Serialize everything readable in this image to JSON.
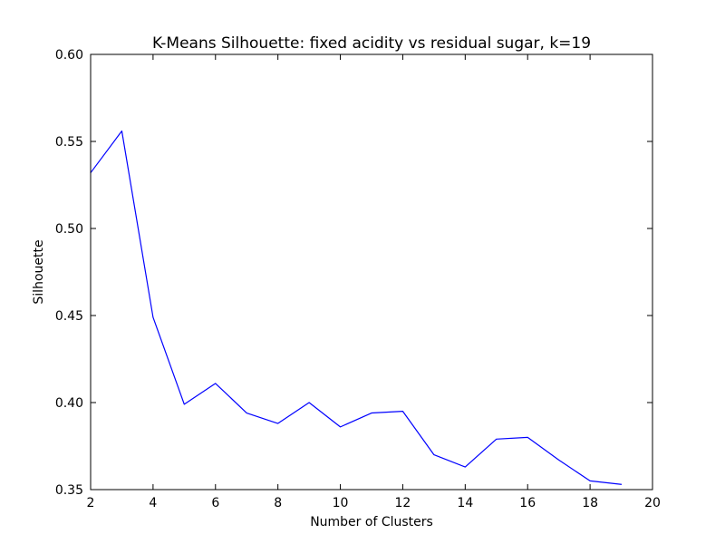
{
  "chart_data": {
    "type": "line",
    "title": "K-Means Silhouette: fixed acidity vs residual sugar, k=19",
    "xlabel": "Number of Clusters",
    "ylabel": "Silhouette",
    "xlim": [
      2,
      20
    ],
    "ylim": [
      0.35,
      0.6
    ],
    "xticks": [
      2,
      4,
      6,
      8,
      10,
      12,
      14,
      16,
      18,
      20
    ],
    "xtick_labels": [
      "2",
      "4",
      "6",
      "8",
      "10",
      "12",
      "14",
      "16",
      "18",
      "20"
    ],
    "yticks": [
      0.35,
      0.4,
      0.45,
      0.5,
      0.55,
      0.6
    ],
    "ytick_labels": [
      "0.35",
      "0.40",
      "0.45",
      "0.50",
      "0.55",
      "0.60"
    ],
    "grid": false,
    "series": [
      {
        "color": "#0000ff",
        "x": [
          2,
          3,
          4,
          5,
          6,
          7,
          8,
          9,
          10,
          11,
          12,
          13,
          14,
          15,
          16,
          17,
          18,
          19
        ],
        "y": [
          0.532,
          0.556,
          0.449,
          0.399,
          0.411,
          0.394,
          0.388,
          0.4,
          0.386,
          0.394,
          0.395,
          0.37,
          0.363,
          0.379,
          0.38,
          0.367,
          0.355,
          0.353
        ]
      }
    ]
  }
}
